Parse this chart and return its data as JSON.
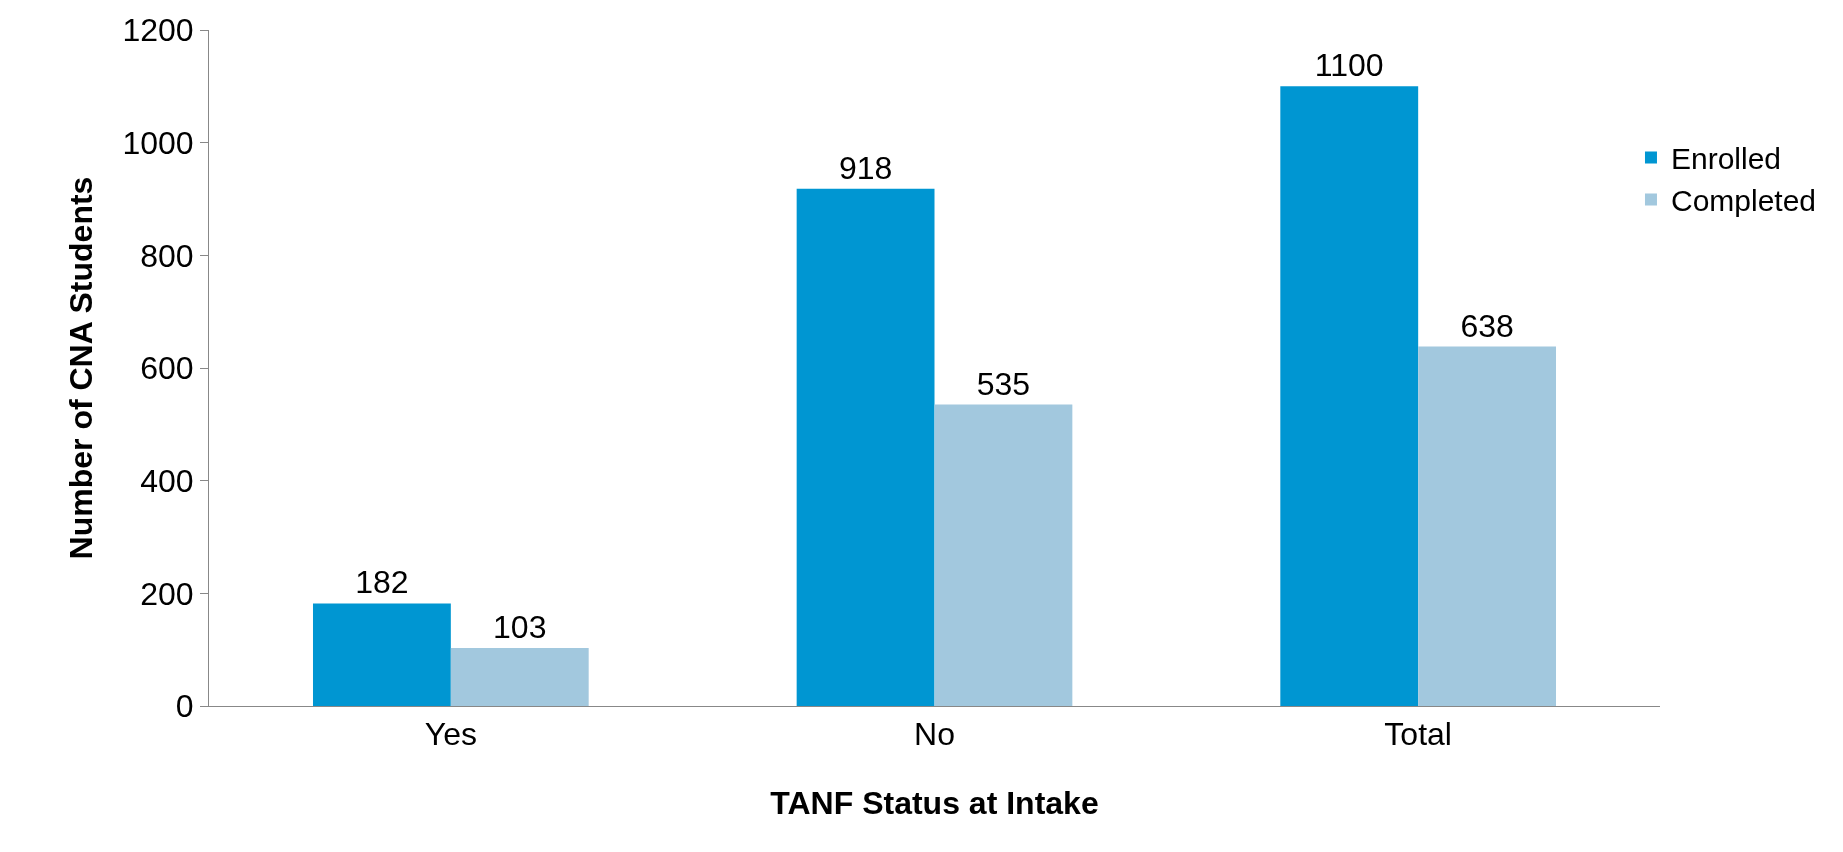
{
  "chart_data": {
    "type": "bar",
    "xlabel": "TANF Status at Intake",
    "ylabel": "Number of CNA Students",
    "categories": [
      "Yes",
      "No",
      "Total"
    ],
    "series": [
      {
        "name": "Enrolled",
        "color": "#0096d2",
        "values": [
          182,
          918,
          1100
        ]
      },
      {
        "name": "Completed",
        "color": "#a2c8de",
        "values": [
          103,
          535,
          638
        ]
      }
    ],
    "ylim": [
      0,
      1200
    ],
    "yticks": [
      0,
      200,
      400,
      600,
      800,
      1000,
      1200
    ],
    "legend": "top right",
    "data_labels": true
  }
}
